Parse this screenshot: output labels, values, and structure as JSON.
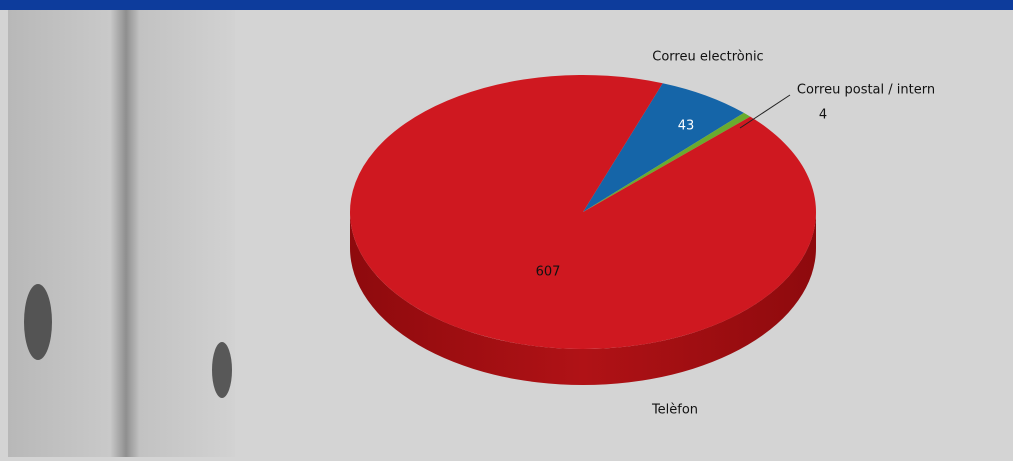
{
  "chart_data": {
    "type": "pie",
    "categories": [
      "Correu electrònic",
      "Correu postal / intern",
      "Telèfon"
    ],
    "values": [
      43,
      4,
      607
    ],
    "colors": [
      "#1565a8",
      "#6aab2e",
      "#cf1820"
    ]
  }
}
